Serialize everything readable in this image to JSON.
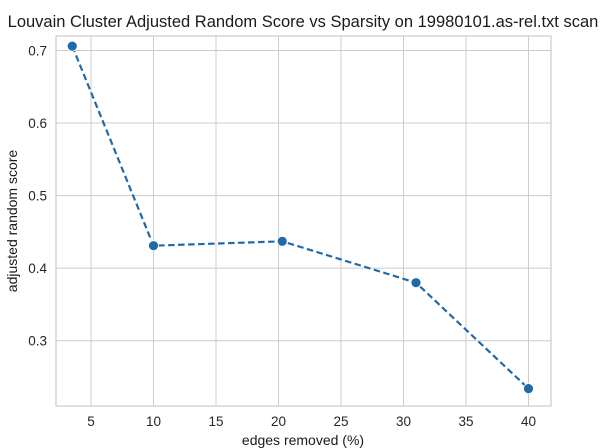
{
  "chart_data": {
    "type": "line",
    "title": "Louvain Cluster Adjusted Random Score vs Sparsity on 19980101.as-rel.txt scan",
    "xlabel": "edges removed (%)",
    "ylabel": "adjusted random score",
    "xlim": [
      2.2,
      41.8
    ],
    "ylim": [
      0.21,
      0.72
    ],
    "xticks": [
      5,
      10,
      15,
      20,
      25,
      30,
      35,
      40
    ],
    "yticks": [
      0.3,
      0.4,
      0.5,
      0.6,
      0.7
    ],
    "grid": true,
    "series": [
      {
        "color": "#1f6aa8",
        "linestyle": "dashed",
        "marker": "circle",
        "x": [
          3.5,
          10.0,
          20.3,
          31.0,
          40.0
        ],
        "y": [
          0.706,
          0.431,
          0.437,
          0.38,
          0.234
        ]
      }
    ]
  }
}
